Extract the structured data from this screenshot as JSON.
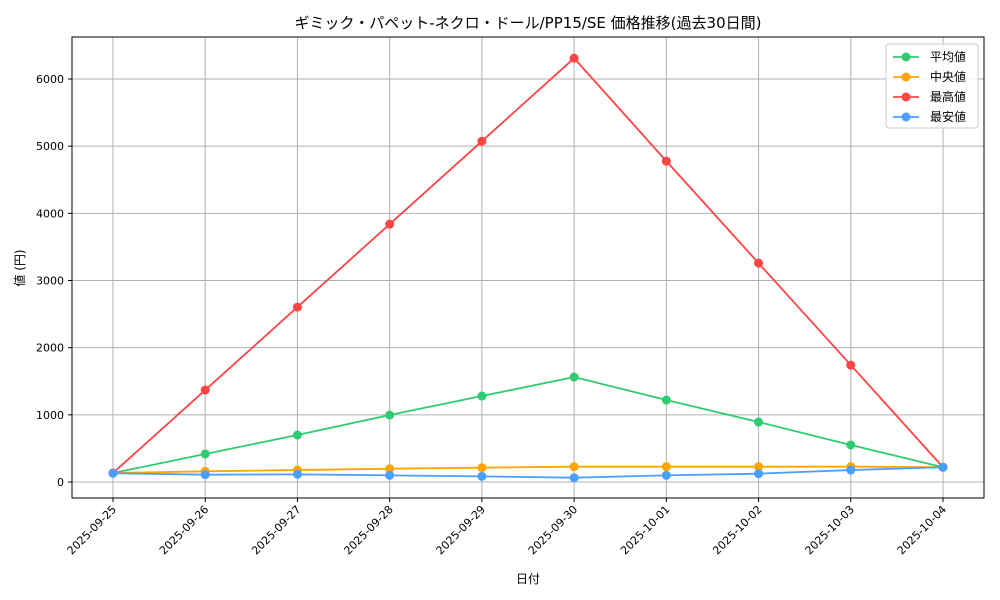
{
  "chart_data": {
    "type": "line",
    "title": "ギミック・パペット-ネクロ・ドール/PP15/SE 価格推移(過去30日間)",
    "xlabel": "日付",
    "ylabel": "値 (円)",
    "categories": [
      "2025-09-25",
      "2025-09-26",
      "2025-09-27",
      "2025-09-28",
      "2025-09-29",
      "2025-09-30",
      "2025-10-01",
      "2025-10-02",
      "2025-10-03",
      "2025-10-04"
    ],
    "ylim": [
      -240,
      6600
    ],
    "yticks": [
      0,
      1000,
      2000,
      3000,
      4000,
      5000,
      6000
    ],
    "grid": true,
    "legend_position": "top-right",
    "series": [
      {
        "name": "平均値",
        "color": "#2ecc71",
        "values": [
          134,
          417,
          699,
          997,
          1280,
          1563,
          1220,
          893,
          551,
          220
        ]
      },
      {
        "name": "中央値",
        "color": "#ffa500",
        "values": [
          134,
          159,
          178,
          198,
          213,
          228,
          228,
          228,
          228,
          220
        ]
      },
      {
        "name": "最高値",
        "color": "#ff4444",
        "values": [
          134,
          1369,
          2604,
          3839,
          5074,
          6310,
          4777,
          3259,
          1741,
          220
        ]
      },
      {
        "name": "最安値",
        "color": "#4a9eff",
        "values": [
          130,
          109,
          114,
          99,
          84,
          64,
          99,
          124,
          178,
          220
        ]
      }
    ]
  }
}
